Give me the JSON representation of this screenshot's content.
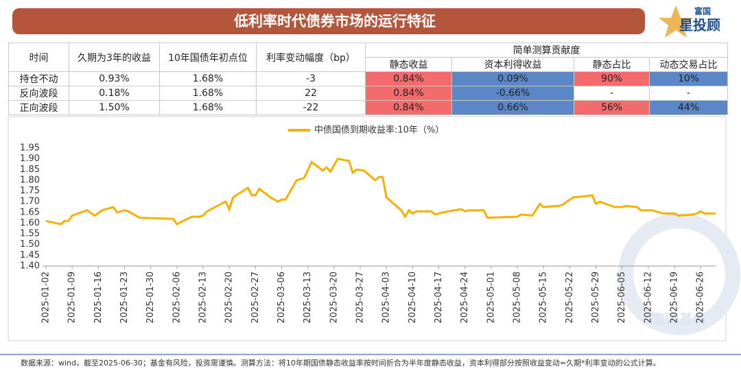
{
  "header": {
    "title": "低利率时代债券市场的运行特征"
  },
  "logo": {
    "top": "富国",
    "main": "星投顾"
  },
  "table": {
    "columns": [
      "时间",
      "久期为3年的收益",
      "10年国债年初点位",
      "利率变动幅度（bp）"
    ],
    "group": "简单测算贡献度",
    "subcolumns": [
      "静态收益",
      "资本利得收益",
      "静态占比",
      "动态交易占比"
    ],
    "rows": [
      [
        "持仓不动",
        "0.93%",
        "1.68%",
        "-3",
        "0.84%",
        "0.09%",
        "90%",
        "10%"
      ],
      [
        "反向波段",
        "0.18%",
        "1.68%",
        "22",
        "0.84%",
        "-0.66%",
        "-",
        "-"
      ],
      [
        "正向波段",
        "1.50%",
        "1.68%",
        "-22",
        "0.84%",
        "0.66%",
        "56%",
        "44%"
      ]
    ]
  },
  "chart_data": {
    "type": "line",
    "x": [
      "2025-01-02",
      "2025-01-06",
      "2025-01-07",
      "2025-01-08",
      "2025-01-09",
      "2025-01-13",
      "2025-01-15",
      "2025-01-17",
      "2025-01-20",
      "2025-01-21",
      "2025-01-23",
      "2025-01-24",
      "2025-01-27",
      "2025-02-05",
      "2025-02-06",
      "2025-02-07",
      "2025-02-10",
      "2025-02-12",
      "2025-02-13",
      "2025-02-14",
      "2025-02-19",
      "2025-02-20",
      "2025-02-21",
      "2025-02-25",
      "2025-02-26",
      "2025-02-27",
      "2025-02-28",
      "2025-03-03",
      "2025-03-05",
      "2025-03-06",
      "2025-03-07",
      "2025-03-10",
      "2025-03-12",
      "2025-03-14",
      "2025-03-17",
      "2025-03-18",
      "2025-03-19",
      "2025-03-21",
      "2025-03-24",
      "2025-03-25",
      "2025-03-26",
      "2025-03-28",
      "2025-03-31",
      "2025-04-01",
      "2025-04-02",
      "2025-04-03",
      "2025-04-07",
      "2025-04-08",
      "2025-04-09",
      "2025-04-10",
      "2025-04-11",
      "2025-04-15",
      "2025-04-16",
      "2025-04-18",
      "2025-04-23",
      "2025-04-24",
      "2025-04-25",
      "2025-04-29",
      "2025-04-30",
      "2025-05-08",
      "2025-05-09",
      "2025-05-12",
      "2025-05-14",
      "2025-05-15",
      "2025-05-19",
      "2025-05-20",
      "2025-05-22",
      "2025-05-23",
      "2025-05-26",
      "2025-05-28",
      "2025-05-29",
      "2025-05-30",
      "2025-06-03",
      "2025-06-05",
      "2025-06-06",
      "2025-06-09",
      "2025-06-10",
      "2025-06-13",
      "2025-06-16",
      "2025-06-19",
      "2025-06-20",
      "2025-06-24",
      "2025-06-25",
      "2025-06-26",
      "2025-06-27",
      "2025-06-30"
    ],
    "series": [
      {
        "name": "中债国债到期收益率:10年（%）",
        "color": "#f5b000",
        "values": [
          1.61,
          1.595,
          1.61,
          1.61,
          1.635,
          1.66,
          1.635,
          1.66,
          1.675,
          1.65,
          1.66,
          1.655,
          1.625,
          1.62,
          1.595,
          1.605,
          1.63,
          1.63,
          1.635,
          1.655,
          1.7,
          1.665,
          1.72,
          1.765,
          1.73,
          1.73,
          1.76,
          1.72,
          1.7,
          1.71,
          1.71,
          1.8,
          1.81,
          1.885,
          1.845,
          1.86,
          1.84,
          1.9,
          1.89,
          1.835,
          1.85,
          1.845,
          1.8,
          1.815,
          1.815,
          1.72,
          1.66,
          1.63,
          1.66,
          1.645,
          1.655,
          1.655,
          1.64,
          1.65,
          1.665,
          1.655,
          1.66,
          1.66,
          1.625,
          1.63,
          1.64,
          1.635,
          1.69,
          1.675,
          1.68,
          1.685,
          1.71,
          1.72,
          1.725,
          1.73,
          1.69,
          1.7,
          1.675,
          1.675,
          1.68,
          1.675,
          1.66,
          1.66,
          1.645,
          1.645,
          1.635,
          1.64,
          1.645,
          1.655,
          1.645,
          1.645
        ]
      }
    ],
    "xlim": [
      "2025-01-02",
      "2025-06-30"
    ],
    "xticks": [
      "2025-01-02",
      "2025-01-09",
      "2025-01-16",
      "2025-01-23",
      "2025-01-30",
      "2025-02-06",
      "2025-02-13",
      "2025-02-20",
      "2025-02-27",
      "2025-03-06",
      "2025-03-13",
      "2025-03-20",
      "2025-03-27",
      "2025-04-03",
      "2025-04-10",
      "2025-04-17",
      "2025-04-24",
      "2025-05-01",
      "2025-05-08",
      "2025-05-15",
      "2025-05-22",
      "2025-05-29",
      "2025-06-05",
      "2025-06-12",
      "2025-06-19",
      "2025-06-26"
    ],
    "ylim": [
      1.4,
      1.95
    ],
    "yticks": [
      {
        "value": 1.4,
        "label": "1.40"
      },
      1.45,
      {
        "value": 1.5,
        "label": "1.50"
      },
      1.55,
      {
        "value": 1.6,
        "label": "1.60"
      },
      1.65,
      {
        "value": 1.7,
        "label": "1.70"
      },
      1.75,
      {
        "value": 1.8,
        "label": "1.80"
      },
      1.85,
      {
        "value": 1.9,
        "label": "1.90"
      },
      1.95
    ],
    "legend": "top"
  },
  "watermark": "富国基金",
  "footnote": "数据来源：wind，截至2025-06-30；基金有风险，投资需谨慎。测算方法：将10年期国债静态收益率按时间折合为半年度静态收益，资本利得部分按照收益变动=久期*利率变动的公式计算。"
}
